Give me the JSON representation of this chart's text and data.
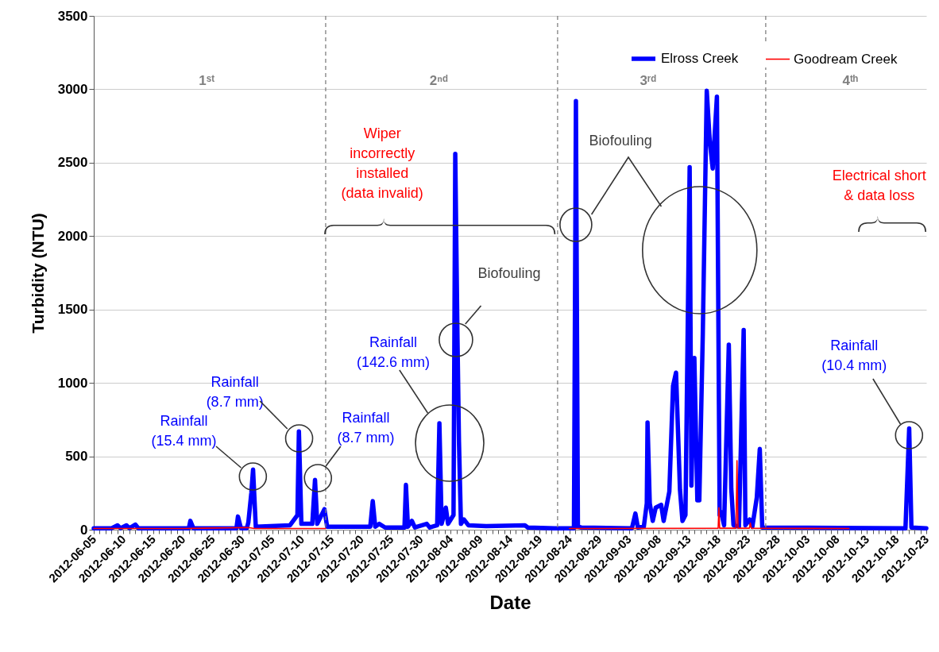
{
  "chart_data": {
    "type": "line",
    "xlabel": "Date",
    "ylabel": "Turbidity (NTU)",
    "xlim": [
      "2012-06-05",
      "2012-10-23"
    ],
    "ylim": [
      0,
      3500
    ],
    "yticks": [
      0,
      500,
      1000,
      1500,
      2000,
      2500,
      3000,
      3500
    ],
    "xticks": [
      "2012-06-05",
      {
        "value": "2012-06-06",
        "label": null
      },
      {
        "value": "2012-06-07",
        "label": null
      },
      {
        "value": "2012-06-08",
        "label": null
      },
      {
        "value": "2012-06-09",
        "label": null
      },
      "2012-06-10",
      {
        "value": "2012-06-11",
        "label": null
      },
      {
        "value": "2012-06-12",
        "label": null
      },
      {
        "value": "2012-06-13",
        "label": null
      },
      {
        "value": "2012-06-14",
        "label": null
      },
      "2012-06-15",
      {
        "value": "2012-06-16",
        "label": null
      },
      {
        "value": "2012-06-17",
        "label": null
      },
      {
        "value": "2012-06-18",
        "label": null
      },
      {
        "value": "2012-06-19",
        "label": null
      },
      "2012-06-20",
      {
        "value": "2012-06-21",
        "label": null
      },
      {
        "value": "2012-06-22",
        "label": null
      },
      {
        "value": "2012-06-23",
        "label": null
      },
      {
        "value": "2012-06-24",
        "label": null
      },
      "2012-06-25",
      {
        "value": "2012-06-26",
        "label": null
      },
      {
        "value": "2012-06-27",
        "label": null
      },
      {
        "value": "2012-06-28",
        "label": null
      },
      {
        "value": "2012-06-29",
        "label": null
      },
      "2012-06-30",
      {
        "value": "2012-07-01",
        "label": null
      },
      {
        "value": "2012-07-02",
        "label": null
      },
      {
        "value": "2012-07-03",
        "label": null
      },
      {
        "value": "2012-07-04",
        "label": null
      },
      "2012-07-05",
      {
        "value": "2012-07-06",
        "label": null
      },
      {
        "value": "2012-07-07",
        "label": null
      },
      {
        "value": "2012-07-08",
        "label": null
      },
      {
        "value": "2012-07-09",
        "label": null
      },
      "2012-07-10",
      {
        "value": "2012-07-11",
        "label": null
      },
      {
        "value": "2012-07-12",
        "label": null
      },
      {
        "value": "2012-07-13",
        "label": null
      },
      {
        "value": "2012-07-14",
        "label": null
      },
      "2012-07-15",
      {
        "value": "2012-07-16",
        "label": null
      },
      {
        "value": "2012-07-17",
        "label": null
      },
      {
        "value": "2012-07-18",
        "label": null
      },
      {
        "value": "2012-07-19",
        "label": null
      },
      "2012-07-20",
      {
        "value": "2012-07-21",
        "label": null
      },
      {
        "value": "2012-07-22",
        "label": null
      },
      {
        "value": "2012-07-23",
        "label": null
      },
      {
        "value": "2012-07-24",
        "label": null
      },
      "2012-07-25",
      {
        "value": "2012-07-26",
        "label": null
      },
      {
        "value": "2012-07-27",
        "label": null
      },
      {
        "value": "2012-07-28",
        "label": null
      },
      {
        "value": "2012-07-29",
        "label": null
      },
      "2012-07-30",
      {
        "value": "2012-07-31",
        "label": null
      },
      {
        "value": "2012-08-01",
        "label": null
      },
      {
        "value": "2012-08-02",
        "label": null
      },
      {
        "value": "2012-08-03",
        "label": null
      },
      "2012-08-04",
      {
        "value": "2012-08-05",
        "label": null
      },
      {
        "value": "2012-08-06",
        "label": null
      },
      {
        "value": "2012-08-07",
        "label": null
      },
      {
        "value": "2012-08-08",
        "label": null
      },
      "2012-08-09",
      {
        "value": "2012-08-10",
        "label": null
      },
      {
        "value": "2012-08-11",
        "label": null
      },
      {
        "value": "2012-08-12",
        "label": null
      },
      {
        "value": "2012-08-13",
        "label": null
      },
      "2012-08-14",
      {
        "value": "2012-08-15",
        "label": null
      },
      {
        "value": "2012-08-16",
        "label": null
      },
      {
        "value": "2012-08-17",
        "label": null
      },
      {
        "value": "2012-08-18",
        "label": null
      },
      "2012-08-19",
      {
        "value": "2012-08-20",
        "label": null
      },
      {
        "value": "2012-08-21",
        "label": null
      },
      {
        "value": "2012-08-22",
        "label": null
      },
      {
        "value": "2012-08-23",
        "label": null
      },
      "2012-08-24",
      {
        "value": "2012-08-25",
        "label": null
      },
      {
        "value": "2012-08-26",
        "label": null
      },
      {
        "value": "2012-08-27",
        "label": null
      },
      {
        "value": "2012-08-28",
        "label": null
      },
      "2012-08-29",
      {
        "value": "2012-08-30",
        "label": null
      },
      {
        "value": "2012-08-31",
        "label": null
      },
      {
        "value": "2012-09-01",
        "label": null
      },
      {
        "value": "2012-09-02",
        "label": null
      },
      "2012-09-03",
      {
        "value": "2012-09-04",
        "label": null
      },
      {
        "value": "2012-09-05",
        "label": null
      },
      {
        "value": "2012-09-06",
        "label": null
      },
      {
        "value": "2012-09-07",
        "label": null
      },
      "2012-09-08",
      {
        "value": "2012-09-09",
        "label": null
      },
      {
        "value": "2012-09-10",
        "label": null
      },
      {
        "value": "2012-09-11",
        "label": null
      },
      {
        "value": "2012-09-12",
        "label": null
      },
      "2012-09-13",
      {
        "value": "2012-09-14",
        "label": null
      },
      {
        "value": "2012-09-15",
        "label": null
      },
      {
        "value": "2012-09-16",
        "label": null
      },
      {
        "value": "2012-09-17",
        "label": null
      },
      "2012-09-18",
      {
        "value": "2012-09-19",
        "label": null
      },
      {
        "value": "2012-09-20",
        "label": null
      },
      {
        "value": "2012-09-21",
        "label": null
      },
      {
        "value": "2012-09-22",
        "label": null
      },
      "2012-09-23",
      {
        "value": "2012-09-24",
        "label": null
      },
      {
        "value": "2012-09-25",
        "label": null
      },
      {
        "value": "2012-09-26",
        "label": null
      },
      {
        "value": "2012-09-27",
        "label": null
      },
      "2012-09-28",
      {
        "value": "2012-09-29",
        "label": null
      },
      {
        "value": "2012-09-30",
        "label": null
      },
      {
        "value": "2012-10-01",
        "label": null
      },
      {
        "value": "2012-10-02",
        "label": null
      },
      "2012-10-03",
      {
        "value": "2012-10-04",
        "label": null
      },
      {
        "value": "2012-10-05",
        "label": null
      },
      {
        "value": "2012-10-06",
        "label": null
      },
      {
        "value": "2012-10-07",
        "label": null
      },
      "2012-10-08",
      {
        "value": "2012-10-09",
        "label": null
      },
      {
        "value": "2012-10-10",
        "label": null
      },
      {
        "value": "2012-10-11",
        "label": null
      },
      {
        "value": "2012-10-12",
        "label": null
      },
      "2012-10-13",
      {
        "value": "2012-10-14",
        "label": null
      },
      {
        "value": "2012-10-15",
        "label": null
      },
      {
        "value": "2012-10-16",
        "label": null
      },
      {
        "value": "2012-10-17",
        "label": null
      },
      "2012-10-18",
      {
        "value": "2012-10-19",
        "label": null
      },
      {
        "value": "2012-10-20",
        "label": null
      },
      {
        "value": "2012-10-21",
        "label": null
      },
      {
        "value": "2012-10-22",
        "label": null
      },
      "2012-10-23"
    ],
    "grid": "y",
    "legend": "top right",
    "line_style": "solid",
    "series": [
      {
        "name": "Elross Creek",
        "color": "#0000ff",
        "x": [
          "2012-06-05",
          "2012-06-08",
          "2012-06-09",
          "2012-06-09T12:00",
          "2012-06-10T12:00",
          "2012-06-11",
          "2012-06-12",
          "2012-06-12T12:00",
          "2012-06-21",
          "2012-06-21T06:00",
          "2012-06-21T18:00",
          "2012-06-29",
          "2012-06-29T06:00",
          "2012-06-29T18:00",
          "2012-06-30T18:00",
          "2012-07-01",
          "2012-07-01T12:00",
          "2012-07-01T19:00",
          "2012-07-02T06:00",
          "2012-07-08",
          "2012-07-09T06:00",
          "2012-07-09T12:00",
          "2012-07-09T22:00",
          "2012-07-11T18:00",
          "2012-07-12T05:00",
          "2012-07-12T14:00",
          "2012-07-13T19:00",
          "2012-07-14T06:00",
          "2012-07-21T12:00",
          "2012-07-21T22:00",
          "2012-07-22T08:00",
          "2012-07-23",
          "2012-07-24",
          "2012-07-27T06:00",
          "2012-07-27T12:00",
          "2012-07-27T20:00",
          "2012-07-28T12:00",
          "2012-07-29",
          "2012-07-31",
          "2012-07-31T12:00",
          "2012-08-01T18:00",
          "2012-08-02T03:00",
          "2012-08-02T12:00",
          "2012-08-03T05:00",
          "2012-08-03T14:00",
          "2012-08-04T12:00",
          "2012-08-04T19:00",
          "2012-08-05T04:00",
          "2012-08-05T10:00",
          "2012-08-05T18:00",
          "2012-08-06T06:00",
          "2012-08-07",
          "2012-08-10",
          "2012-08-16T12:00",
          "2012-08-17",
          "2012-08-21T12:00",
          "2012-08-24T18:00",
          "2012-08-25T02:00",
          "2012-08-25T10:00",
          "2012-08-26",
          "2012-09-03T12:00",
          "2012-09-04T02:00",
          "2012-09-04T12:00",
          "2012-09-05T12:00",
          "2012-09-06",
          "2012-09-06T03:00",
          "2012-09-06T12:00",
          "2012-09-07",
          "2012-09-07T12:00",
          "2012-09-08T10:00",
          "2012-09-08T20:00",
          "2012-09-09T19:00",
          "2012-09-10T10:00",
          "2012-09-10T22:00",
          "2012-09-11T14:00",
          "2012-09-12",
          "2012-09-12T12:00",
          "2012-09-13T05:00",
          "2012-09-13T12:00",
          "2012-09-14",
          "2012-09-14T12:00",
          "2012-09-14T20:00",
          "2012-09-15T10:00",
          "2012-09-16T02:00",
          "2012-09-16T14:00",
          "2012-09-17T02:00",
          "2012-09-17T19:00",
          "2012-09-18T06:00",
          "2012-09-18T12:00",
          "2012-09-19",
          "2012-09-19T19:00",
          "2012-09-20T05:00",
          "2012-09-20T14:00",
          "2012-09-21T12:00",
          "2012-09-22T07:00",
          "2012-09-22T14:00",
          "2012-09-23T07:00",
          "2012-09-23T18:00",
          "2012-09-24T12:00",
          "2012-09-25",
          "2012-09-25T10:00",
          "2012-10-19T12:00",
          "2012-10-20T03:00",
          "2012-10-20T12:00",
          "2012-10-23"
        ],
        "values": [
          10,
          10,
          30,
          10,
          30,
          10,
          35,
          10,
          10,
          60,
          10,
          10,
          90,
          10,
          10,
          50,
          250,
          410,
          20,
          30,
          100,
          670,
          40,
          40,
          340,
          40,
          140,
          20,
          20,
          195,
          20,
          40,
          15,
          15,
          305,
          20,
          60,
          15,
          40,
          15,
          30,
          725,
          40,
          150,
          40,
          100,
          2560,
          1300,
          600,
          40,
          70,
          30,
          25,
          30,
          15,
          10,
          10,
          2920,
          20,
          15,
          10,
          110,
          15,
          20,
          180,
          730,
          180,
          60,
          150,
          170,
          60,
          260,
          980,
          1070,
          270,
          60,
          100,
          2470,
          300,
          1170,
          200,
          200,
          1330,
          2990,
          2650,
          2460,
          2950,
          100,
          120,
          30,
          1260,
          280,
          30,
          20,
          1360,
          30,
          70,
          20,
          220,
          550,
          15,
          10,
          690,
          15,
          10
        ]
      },
      {
        "name": "Goodream Creek",
        "color": "#ff0000",
        "x": [
          "2012-06-05",
          "2012-06-20",
          "2012-07-01",
          "2012-07-02",
          "2012-07-14",
          "2012-07-14T12:00",
          "2012-08-24",
          "2012-09-18",
          "2012-09-18T03:00",
          "2012-09-18T06:00",
          "2012-09-21",
          "2012-09-21T04:00",
          "2012-09-21T08:00",
          "2012-09-23T06:00",
          "2012-09-23T10:00",
          "2012-09-23T14:00",
          "2012-10-10"
        ],
        "values": [
          8,
          8,
          15,
          8,
          8,
          null,
          8,
          10,
          150,
          10,
          10,
          470,
          10,
          10,
          45,
          10,
          8
        ]
      }
    ],
    "ref_lines": [
      {
        "axis": "x",
        "value": "2012-07-14",
        "color": "#808080",
        "line_style": "dashed"
      },
      {
        "axis": "x",
        "value": "2012-08-22",
        "color": "#808080",
        "line_style": "dashed"
      },
      {
        "axis": "x",
        "value": "2012-09-26",
        "color": "#808080",
        "line_style": "dashed"
      }
    ],
    "annotations": [
      "1ˢᵗ",
      "2ⁿᵈ",
      "3ʳᵈ",
      "4ᵗʰ",
      "Rainfall\n(15.4 mm)",
      "Rainfall\n(8.7 mm)",
      {
        "text": "Rainfall\n(8.7 mm)",
        "x": "2012-07-12T05:00",
        "y": 340
      },
      "Rainfall\n(142.6 mm)",
      "Biofouling",
      "Biofouling",
      "Wiper\nincorrectly\ninstalled\n(data invalid)",
      "Electrical short\n& data loss",
      "Rainfall\n(10.4 mm)"
    ]
  }
}
